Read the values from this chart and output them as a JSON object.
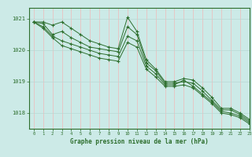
{
  "bg_color": "#cceae7",
  "grid_color_v": "#f0b8b8",
  "grid_color_h": "#b8d8d4",
  "line_color": "#2d6e2d",
  "marker_color": "#2d6e2d",
  "title": "Graphe pression niveau de la mer (hPa)",
  "xlim": [
    -0.5,
    23
  ],
  "ylim": [
    1017.5,
    1021.35
  ],
  "yticks": [
    1018,
    1019,
    1020,
    1021
  ],
  "xticks": [
    0,
    1,
    2,
    3,
    4,
    5,
    6,
    7,
    8,
    9,
    10,
    11,
    12,
    13,
    14,
    15,
    16,
    17,
    18,
    19,
    20,
    21,
    22,
    23
  ],
  "series": [
    [
      1020.9,
      1020.9,
      1020.8,
      1020.9,
      1020.7,
      1020.5,
      1020.3,
      1020.2,
      1020.1,
      1020.05,
      1021.05,
      1020.6,
      1019.7,
      1019.4,
      1019.0,
      1019.0,
      1019.1,
      1019.05,
      1018.8,
      1018.5,
      1018.15,
      1018.15,
      1018.0,
      1017.8
    ],
    [
      1020.9,
      1020.85,
      1020.5,
      1020.6,
      1020.4,
      1020.25,
      1020.1,
      1020.05,
      1020.0,
      1019.95,
      1020.75,
      1020.5,
      1019.6,
      1019.35,
      1018.95,
      1018.95,
      1019.0,
      1018.95,
      1018.7,
      1018.4,
      1018.1,
      1018.1,
      1017.95,
      1017.75
    ],
    [
      1020.9,
      1020.75,
      1020.45,
      1020.3,
      1020.2,
      1020.1,
      1020.0,
      1019.9,
      1019.85,
      1019.8,
      1020.45,
      1020.3,
      1019.5,
      1019.25,
      1018.9,
      1018.9,
      1019.05,
      1018.85,
      1018.6,
      1018.35,
      1018.05,
      1018.0,
      1017.9,
      1017.7
    ],
    [
      1020.9,
      1020.7,
      1020.4,
      1020.15,
      1020.05,
      1019.95,
      1019.85,
      1019.75,
      1019.7,
      1019.65,
      1020.25,
      1020.1,
      1019.4,
      1019.15,
      1018.85,
      1018.85,
      1018.9,
      1018.8,
      1018.55,
      1018.3,
      1018.0,
      1017.95,
      1017.85,
      1017.65
    ]
  ]
}
